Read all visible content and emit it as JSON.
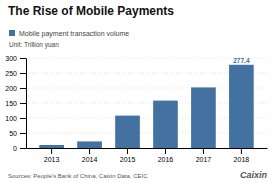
{
  "chart_data": {
    "type": "bar",
    "title": "The Rise of Mobile Payments",
    "subtitle": "Mobile payment transaction volume",
    "y_label": "Unit: Trillion yuan",
    "categories": [
      "2013",
      "2014",
      "2015",
      "2016",
      "2017",
      "2018"
    ],
    "values": [
      10,
      22,
      108,
      158,
      202,
      277.4
    ],
    "color": "#4472a0",
    "ylim": [
      0,
      300
    ],
    "yticks": [
      0,
      50,
      100,
      150,
      200,
      250,
      300
    ],
    "grid": true,
    "annotations": [
      {
        "text": "277.4",
        "x": "2018",
        "y": 277.4
      }
    ],
    "source": "Sources: People's Bank of China, Caixin Data, CEIC",
    "credit": "Caixin"
  }
}
